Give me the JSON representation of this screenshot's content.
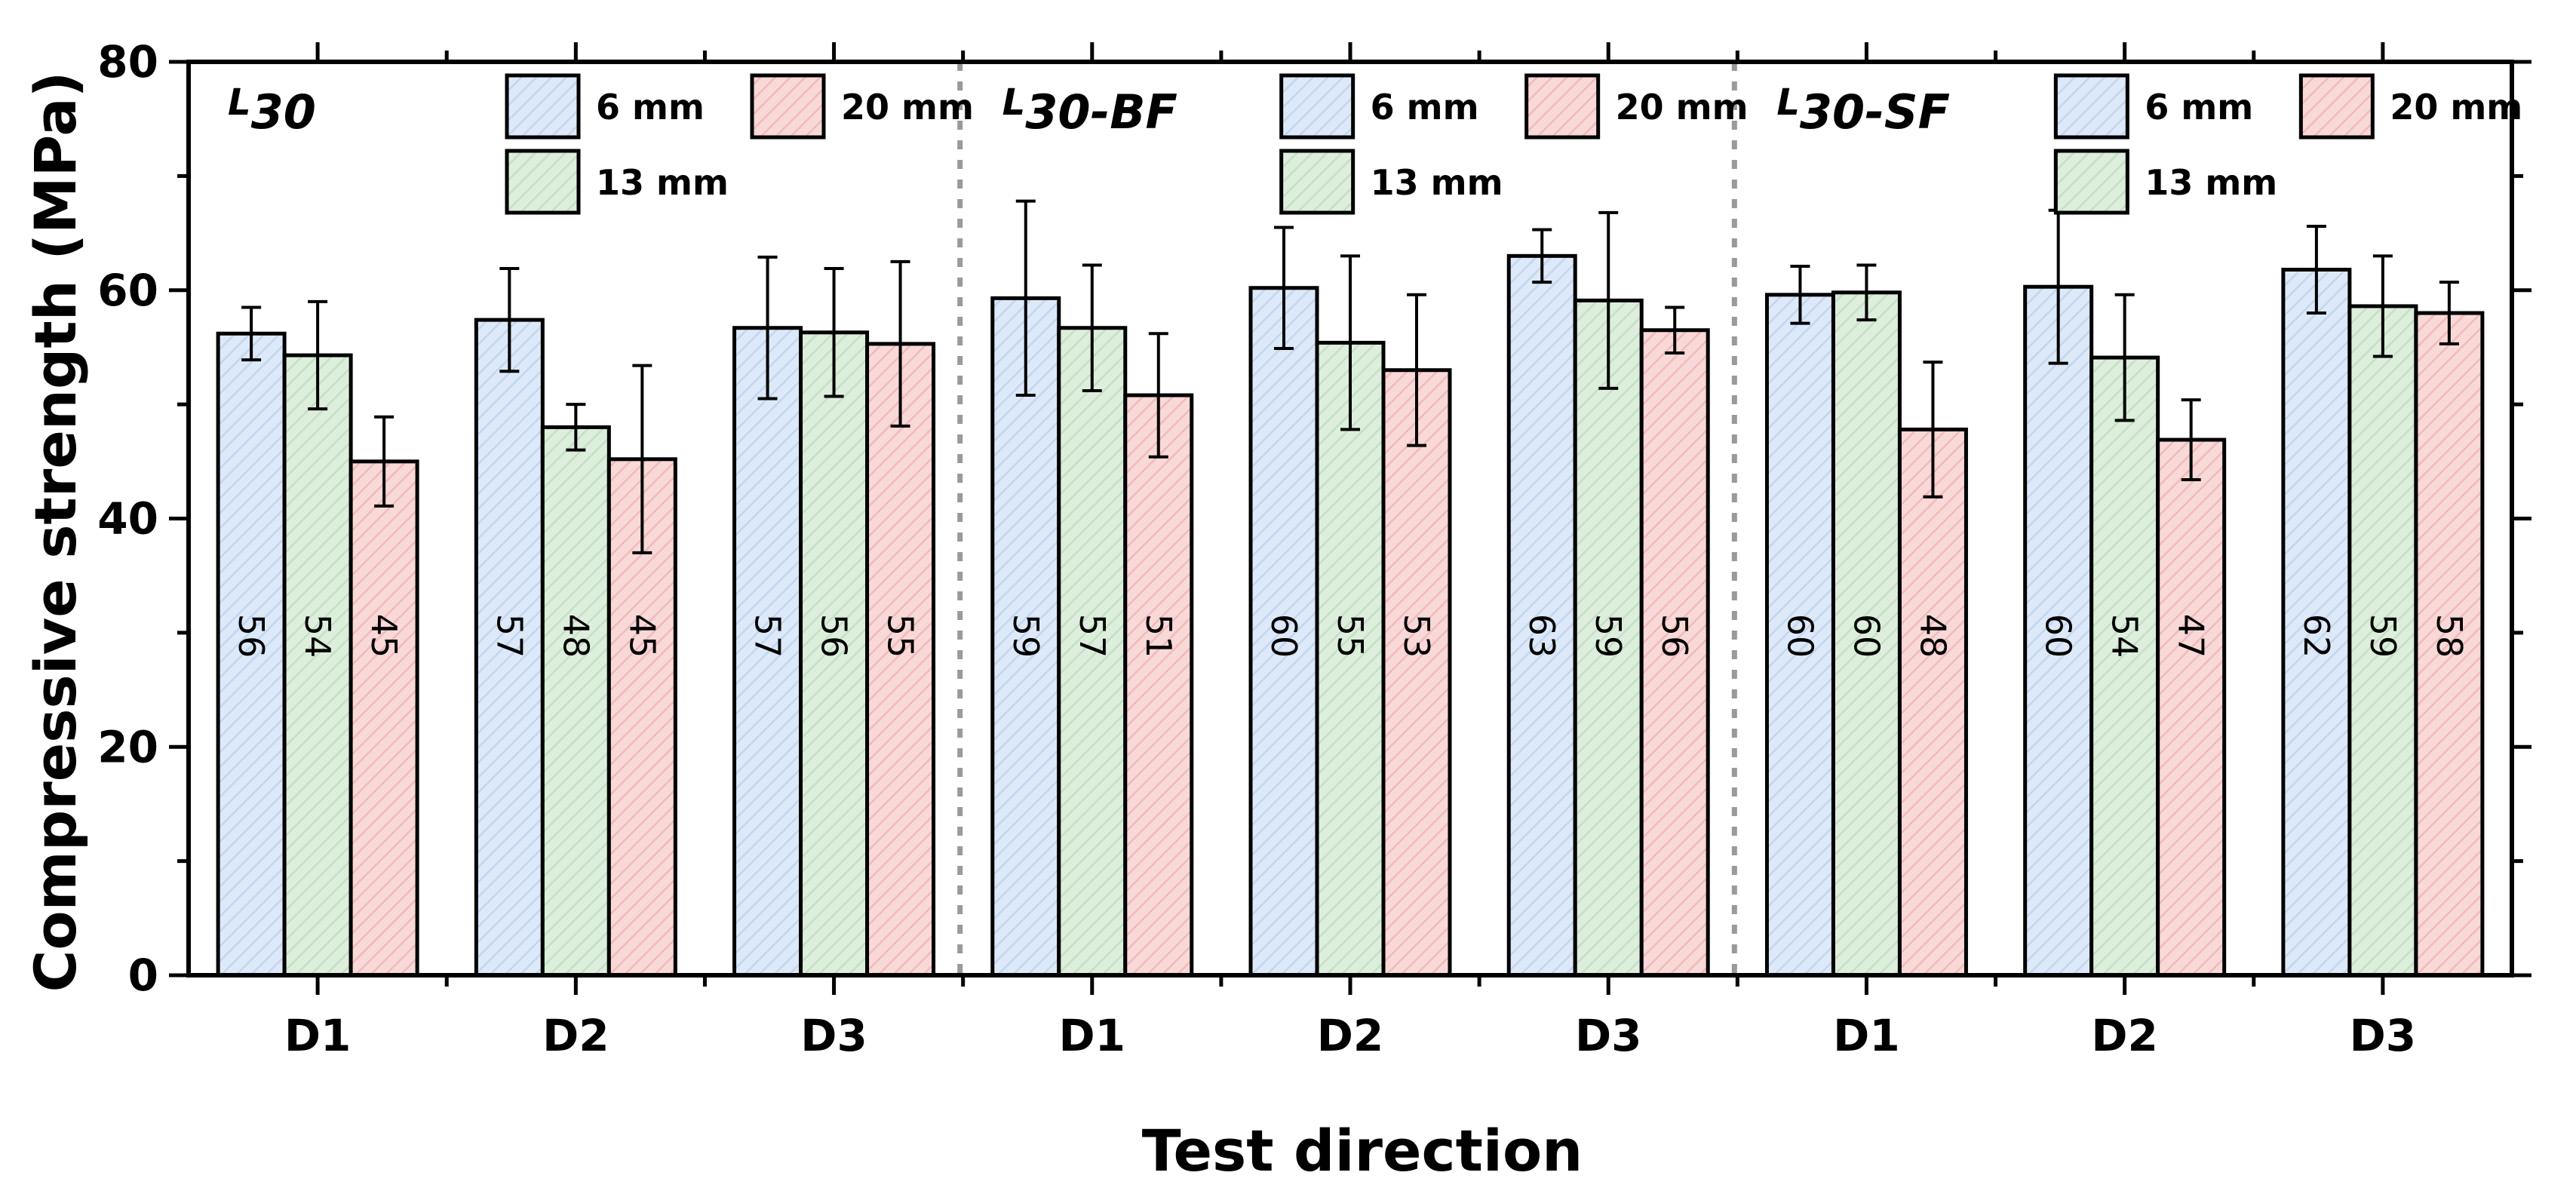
{
  "chart_data": {
    "type": "bar",
    "xlabel": "Test direction",
    "ylabel": "Compressive strength (MPa)",
    "ylim": [
      0,
      80
    ],
    "yticks": [
      0,
      20,
      40,
      60,
      80
    ],
    "grid": false,
    "legend_placement": "top of each panel",
    "colors": {
      "6 mm": "#dde9f8",
      "13 mm": "#ddeedd",
      "20 mm": "#f9d8d8"
    },
    "series_names": [
      "6 mm",
      "13 mm",
      "20 mm"
    ],
    "panels": [
      {
        "label_main": "L",
        "label_sub": "30",
        "categories": [
          "D1",
          "D2",
          "D3"
        ],
        "series": [
          {
            "name": "6 mm",
            "values": [
              56.2,
              57.4,
              56.7
            ],
            "errors": [
              2.3,
              4.5,
              6.2
            ],
            "labels": [
              "56",
              "57",
              "57"
            ]
          },
          {
            "name": "13 mm",
            "values": [
              54.3,
              48.0,
              56.3
            ],
            "errors": [
              4.7,
              2.0,
              5.6
            ],
            "labels": [
              "54",
              "48",
              "56"
            ]
          },
          {
            "name": "20 mm",
            "values": [
              45.0,
              45.2,
              55.3
            ],
            "errors": [
              3.9,
              8.2,
              7.2
            ],
            "labels": [
              "45",
              "45",
              "55"
            ]
          }
        ]
      },
      {
        "label_main": "L",
        "label_sub": "30-BF",
        "categories": [
          "D1",
          "D2",
          "D3"
        ],
        "series": [
          {
            "name": "6 mm",
            "values": [
              59.3,
              60.2,
              63.0
            ],
            "errors": [
              8.5,
              5.3,
              2.3
            ],
            "labels": [
              "59",
              "60",
              "63"
            ]
          },
          {
            "name": "13 mm",
            "values": [
              56.7,
              55.4,
              59.1
            ],
            "errors": [
              5.5,
              7.6,
              7.7
            ],
            "labels": [
              "57",
              "55",
              "59"
            ]
          },
          {
            "name": "20 mm",
            "values": [
              50.8,
              53.0,
              56.5
            ],
            "errors": [
              5.4,
              6.6,
              2.0
            ],
            "labels": [
              "51",
              "53",
              "56"
            ]
          }
        ]
      },
      {
        "label_main": "L",
        "label_sub": "30-SF",
        "categories": [
          "D1",
          "D2",
          "D3"
        ],
        "series": [
          {
            "name": "6 mm",
            "values": [
              59.6,
              60.3,
              61.8
            ],
            "errors": [
              2.5,
              6.7,
              3.8
            ],
            "labels": [
              "60",
              "60",
              "62"
            ]
          },
          {
            "name": "13 mm",
            "values": [
              59.8,
              54.1,
              58.6
            ],
            "errors": [
              2.4,
              5.5,
              4.4
            ],
            "labels": [
              "60",
              "54",
              "59"
            ]
          },
          {
            "name": "20 mm",
            "values": [
              47.8,
              46.9,
              58.0
            ],
            "errors": [
              5.9,
              3.5,
              2.7
            ],
            "labels": [
              "48",
              "47",
              "58"
            ]
          }
        ]
      }
    ]
  }
}
